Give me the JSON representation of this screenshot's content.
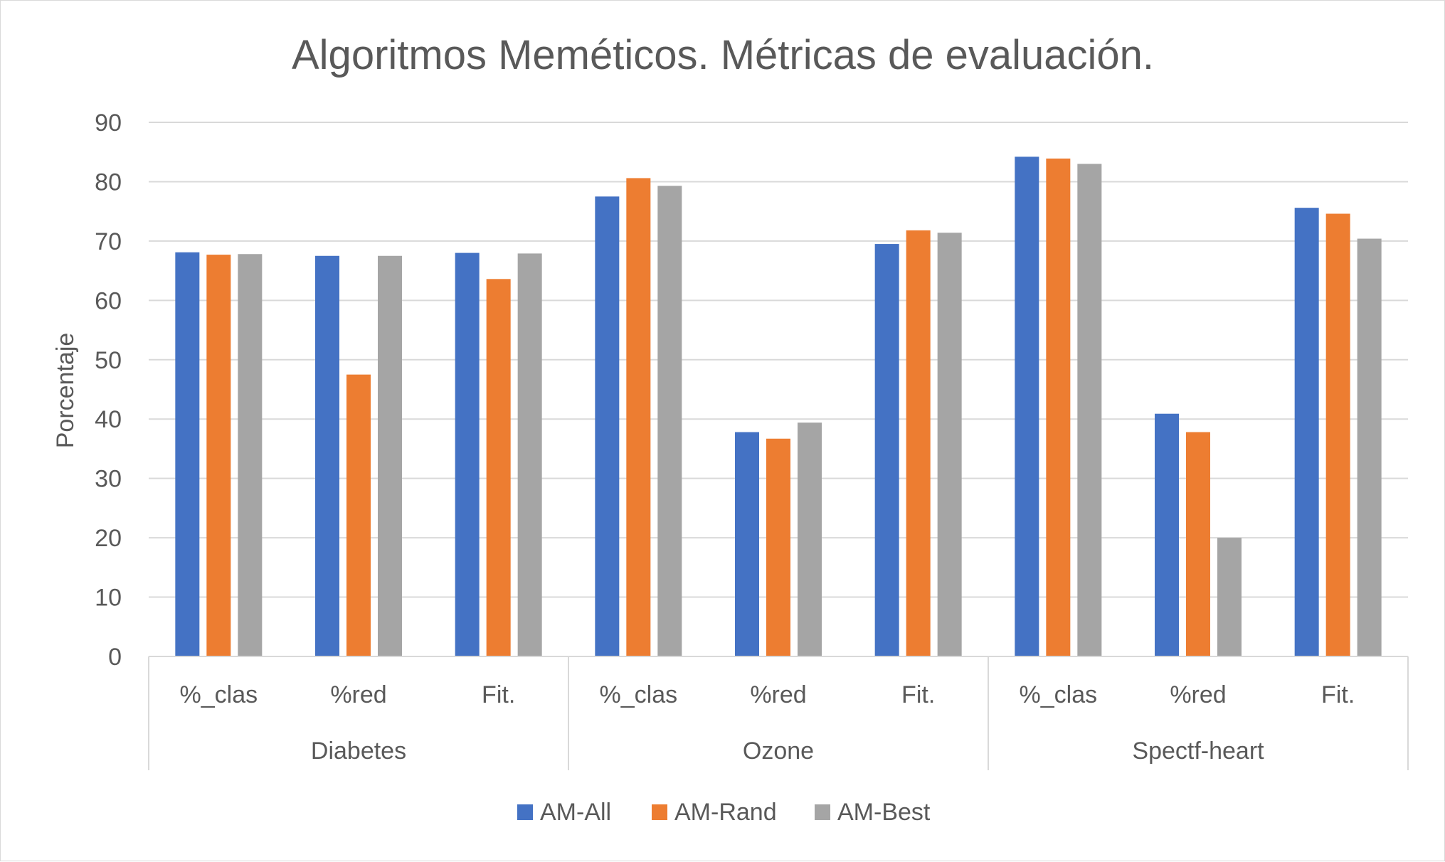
{
  "chart_data": {
    "type": "bar",
    "title": "Algoritmos Meméticos. Métricas de evaluación.",
    "ylabel": "Porcentaje",
    "xlabel": "",
    "ylim": [
      0,
      90
    ],
    "yticks": [
      "0",
      "10",
      "20",
      "30",
      "40",
      "50",
      "60",
      "70",
      "80",
      "90"
    ],
    "grid": true,
    "legend_position": "bottom",
    "groups": [
      {
        "label": "Diabetes",
        "categories": [
          "%_clas",
          "%red",
          "Fit."
        ]
      },
      {
        "label": "Ozone",
        "categories": [
          "%_clas",
          "%red",
          "Fit."
        ]
      },
      {
        "label": "Spectf-heart",
        "categories": [
          "%_clas",
          "%red",
          "Fit."
        ]
      }
    ],
    "series": [
      {
        "name": "AM-All",
        "color": "#4472c4",
        "values": [
          68.1,
          67.5,
          68.0,
          77.5,
          37.8,
          69.5,
          84.2,
          40.9,
          75.6
        ]
      },
      {
        "name": "AM-Rand",
        "color": "#ed7d31",
        "values": [
          67.7,
          47.5,
          63.6,
          80.6,
          36.7,
          71.8,
          83.9,
          37.8,
          74.6
        ]
      },
      {
        "name": "AM-Best",
        "color": "#a5a5a5",
        "values": [
          67.8,
          67.5,
          67.9,
          79.3,
          39.4,
          71.4,
          83.0,
          20.0,
          70.4
        ]
      }
    ]
  }
}
